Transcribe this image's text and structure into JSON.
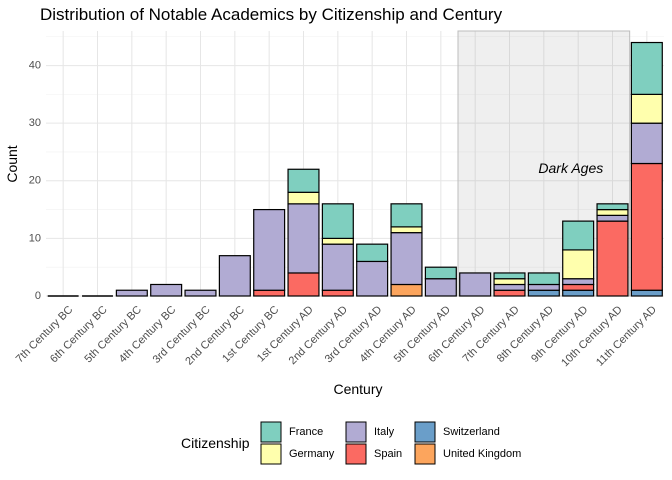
{
  "chart_data": {
    "type": "bar",
    "stacked": true,
    "title": "Distribution of Notable Academics by Citizenship and Century",
    "xlabel": "Century",
    "ylabel": "Count",
    "ylim": [
      0,
      46
    ],
    "yticks": [
      0,
      10,
      20,
      30,
      40
    ],
    "grid": true,
    "categories": [
      "7th Century BC",
      "6th Century BC",
      "5th Century BC",
      "4th Century BC",
      "3rd Century BC",
      "2nd Century BC",
      "1st Century BC",
      "1st Century AD",
      "2nd Century AD",
      "3rd Century AD",
      "4th Century AD",
      "5th Century AD",
      "6th Century AD",
      "7th Century AD",
      "8th Century AD",
      "9th Century AD",
      "10th Century AD",
      "11th Century AD"
    ],
    "series": [
      {
        "name": "Switzerland",
        "color": "#6a9ec9",
        "values": [
          0,
          0,
          0,
          0,
          0,
          0,
          0,
          0,
          0,
          0,
          0,
          0,
          0,
          0,
          1,
          1,
          0,
          1
        ]
      },
      {
        "name": "United Kingdom",
        "color": "#fca55d",
        "values": [
          0,
          0,
          0,
          0,
          0,
          0,
          0,
          0,
          0,
          0,
          2,
          0,
          0,
          0,
          0,
          0,
          0,
          0
        ]
      },
      {
        "name": "Spain",
        "color": "#fb6a62",
        "values": [
          0,
          0,
          0,
          0,
          0,
          0,
          1,
          4,
          1,
          0,
          0,
          0,
          0,
          1,
          0,
          1,
          13,
          22
        ]
      },
      {
        "name": "Italy",
        "color": "#b1abd3",
        "values": [
          0,
          0,
          1,
          2,
          1,
          7,
          14,
          12,
          8,
          6,
          9,
          3,
          4,
          1,
          1,
          1,
          1,
          7
        ]
      },
      {
        "name": "Germany",
        "color": "#ffffad",
        "values": [
          0,
          0,
          0,
          0,
          0,
          0,
          0,
          2,
          1,
          0,
          1,
          0,
          0,
          1,
          0,
          5,
          1,
          5
        ]
      },
      {
        "name": "France",
        "color": "#7fcfbf",
        "values": [
          0,
          0,
          0,
          0,
          0,
          0,
          0,
          4,
          6,
          3,
          4,
          2,
          0,
          1,
          2,
          5,
          1,
          9
        ]
      }
    ],
    "annotation": {
      "text": "Dark Ages",
      "x_start": "6th Century AD",
      "x_end": "10th Century AD"
    },
    "legend": {
      "title": "Citizenship",
      "placement": "bottom",
      "order": [
        "France",
        "Germany",
        "Italy",
        "Spain",
        "Switzerland",
        "United Kingdom"
      ]
    }
  }
}
